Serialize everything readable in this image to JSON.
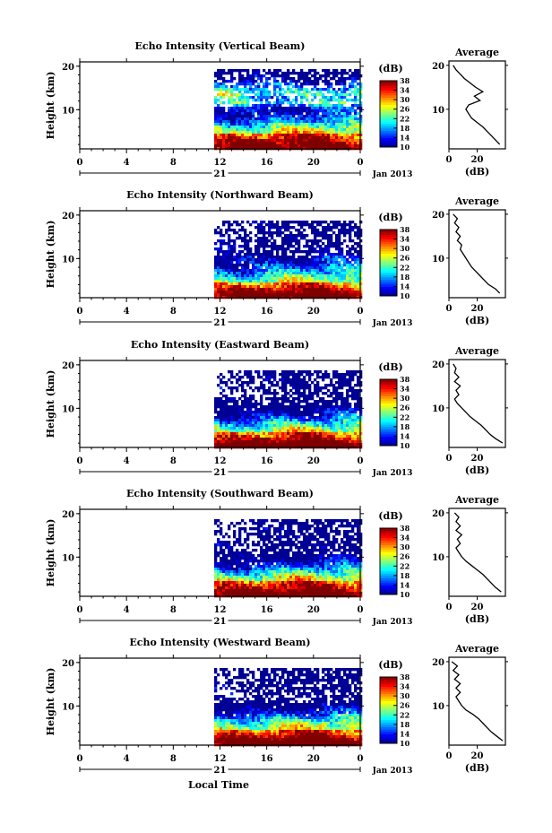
{
  "figure": {
    "xlabel_bottom": "Local Time",
    "date_label": "Jan 2013",
    "day_label": "21",
    "colorbar_title": "(dB)",
    "profile_xlabel": "(dB)",
    "profile_title": "Average"
  },
  "chart_data": [
    {
      "type": "heatmap",
      "title": "Echo Intensity (Vertical Beam)",
      "ylabel": "Height (km)",
      "x_ticks": [
        "0",
        "4",
        "8",
        "12",
        "16",
        "20",
        "0"
      ],
      "y_ticks": [
        "10",
        "20"
      ],
      "xlim_hours": [
        0,
        24
      ],
      "data_start_hour": 11.5,
      "ylim_km": [
        1,
        21
      ],
      "colorbar": {
        "ticks": [
          "10",
          "14",
          "18",
          "22",
          "26",
          "30",
          "34",
          "38"
        ],
        "range": [
          10,
          38
        ]
      },
      "profile": {
        "title": "Average",
        "xlabel": "(dB)",
        "x_ticks": [
          "0",
          "20"
        ],
        "y_ticks": [
          "10",
          "20"
        ],
        "height_km": [
          2,
          3,
          4,
          5,
          6,
          7,
          8,
          9,
          10,
          11,
          12,
          13,
          14,
          15,
          16,
          17,
          18,
          19,
          20
        ],
        "avg_db": [
          36,
          33,
          30,
          27,
          24,
          20,
          16,
          14,
          12,
          14,
          22,
          18,
          24,
          19,
          15,
          11,
          8,
          5,
          3
        ]
      }
    },
    {
      "type": "heatmap",
      "title": "Echo Intensity (Northward Beam)",
      "ylabel": "Height (km)",
      "x_ticks": [
        "0",
        "4",
        "8",
        "12",
        "16",
        "20",
        "0"
      ],
      "y_ticks": [
        "10",
        "20"
      ],
      "xlim_hours": [
        0,
        24
      ],
      "data_start_hour": 11.5,
      "ylim_km": [
        1,
        21
      ],
      "colorbar": {
        "ticks": [
          "10",
          "14",
          "18",
          "22",
          "26",
          "30",
          "34",
          "38"
        ],
        "range": [
          10,
          38
        ]
      },
      "profile": {
        "title": "Average",
        "xlabel": "(dB)",
        "x_ticks": [
          "0",
          "20"
        ],
        "y_ticks": [
          "10",
          "20"
        ],
        "height_km": [
          2,
          3,
          4,
          5,
          6,
          7,
          8,
          9,
          10,
          11,
          12,
          13,
          14,
          15,
          16,
          17,
          18,
          19,
          20
        ],
        "avg_db": [
          36,
          33,
          28,
          25,
          22,
          19,
          16,
          14,
          12,
          10,
          8,
          9,
          6,
          8,
          5,
          7,
          4,
          6,
          3
        ]
      }
    },
    {
      "type": "heatmap",
      "title": "Echo Intensity (Eastward Beam)",
      "ylabel": "Height (km)",
      "x_ticks": [
        "0",
        "4",
        "8",
        "12",
        "16",
        "20",
        "0"
      ],
      "y_ticks": [
        "10",
        "20"
      ],
      "xlim_hours": [
        0,
        24
      ],
      "data_start_hour": 11.5,
      "ylim_km": [
        1,
        21
      ],
      "colorbar": {
        "ticks": [
          "10",
          "14",
          "18",
          "22",
          "26",
          "30",
          "34",
          "38"
        ],
        "range": [
          10,
          38
        ]
      },
      "profile": {
        "title": "Average",
        "xlabel": "(dB)",
        "x_ticks": [
          "0",
          "20"
        ],
        "y_ticks": [
          "10",
          "20"
        ],
        "height_km": [
          2,
          3,
          4,
          5,
          6,
          7,
          8,
          9,
          10,
          11,
          12,
          13,
          14,
          15,
          16,
          17,
          18,
          19,
          20
        ],
        "avg_db": [
          38,
          33,
          29,
          26,
          23,
          19,
          15,
          12,
          9,
          6,
          4,
          7,
          5,
          8,
          4,
          7,
          4,
          5,
          3
        ]
      }
    },
    {
      "type": "heatmap",
      "title": "Echo Intensity (Southward Beam)",
      "ylabel": "Height (km)",
      "x_ticks": [
        "0",
        "4",
        "8",
        "12",
        "16",
        "20",
        "0"
      ],
      "y_ticks": [
        "10",
        "20"
      ],
      "xlim_hours": [
        0,
        24
      ],
      "data_start_hour": 11.5,
      "ylim_km": [
        1,
        21
      ],
      "colorbar": {
        "ticks": [
          "10",
          "14",
          "18",
          "22",
          "26",
          "30",
          "34",
          "38"
        ],
        "range": [
          10,
          38
        ]
      },
      "profile": {
        "title": "Average",
        "xlabel": "(dB)",
        "x_ticks": [
          "0",
          "20"
        ],
        "y_ticks": [
          "10",
          "20"
        ],
        "height_km": [
          2,
          3,
          4,
          5,
          6,
          7,
          8,
          9,
          10,
          11,
          12,
          13,
          14,
          15,
          16,
          17,
          18,
          19,
          20
        ],
        "avg_db": [
          37,
          33,
          30,
          27,
          24,
          20,
          16,
          12,
          9,
          7,
          5,
          8,
          6,
          9,
          5,
          8,
          5,
          7,
          4
        ]
      }
    },
    {
      "type": "heatmap",
      "title": "Echo Intensity (Westward Beam)",
      "ylabel": "Height (km)",
      "x_ticks": [
        "0",
        "4",
        "8",
        "12",
        "16",
        "20",
        "0"
      ],
      "y_ticks": [
        "10",
        "20"
      ],
      "xlim_hours": [
        0,
        24
      ],
      "data_start_hour": 11.5,
      "ylim_km": [
        1,
        21
      ],
      "colorbar": {
        "ticks": [
          "10",
          "14",
          "18",
          "22",
          "26",
          "30",
          "34",
          "38"
        ],
        "range": [
          10,
          38
        ]
      },
      "profile": {
        "title": "Average",
        "xlabel": "(dB)",
        "x_ticks": [
          "0",
          "20"
        ],
        "y_ticks": [
          "10",
          "20"
        ],
        "height_km": [
          2,
          3,
          4,
          5,
          6,
          7,
          8,
          9,
          10,
          11,
          12,
          13,
          14,
          15,
          16,
          17,
          18,
          19,
          20
        ],
        "avg_db": [
          38,
          34,
          30,
          27,
          24,
          21,
          17,
          12,
          9,
          7,
          5,
          8,
          5,
          8,
          4,
          7,
          3,
          6,
          2
        ]
      }
    }
  ]
}
